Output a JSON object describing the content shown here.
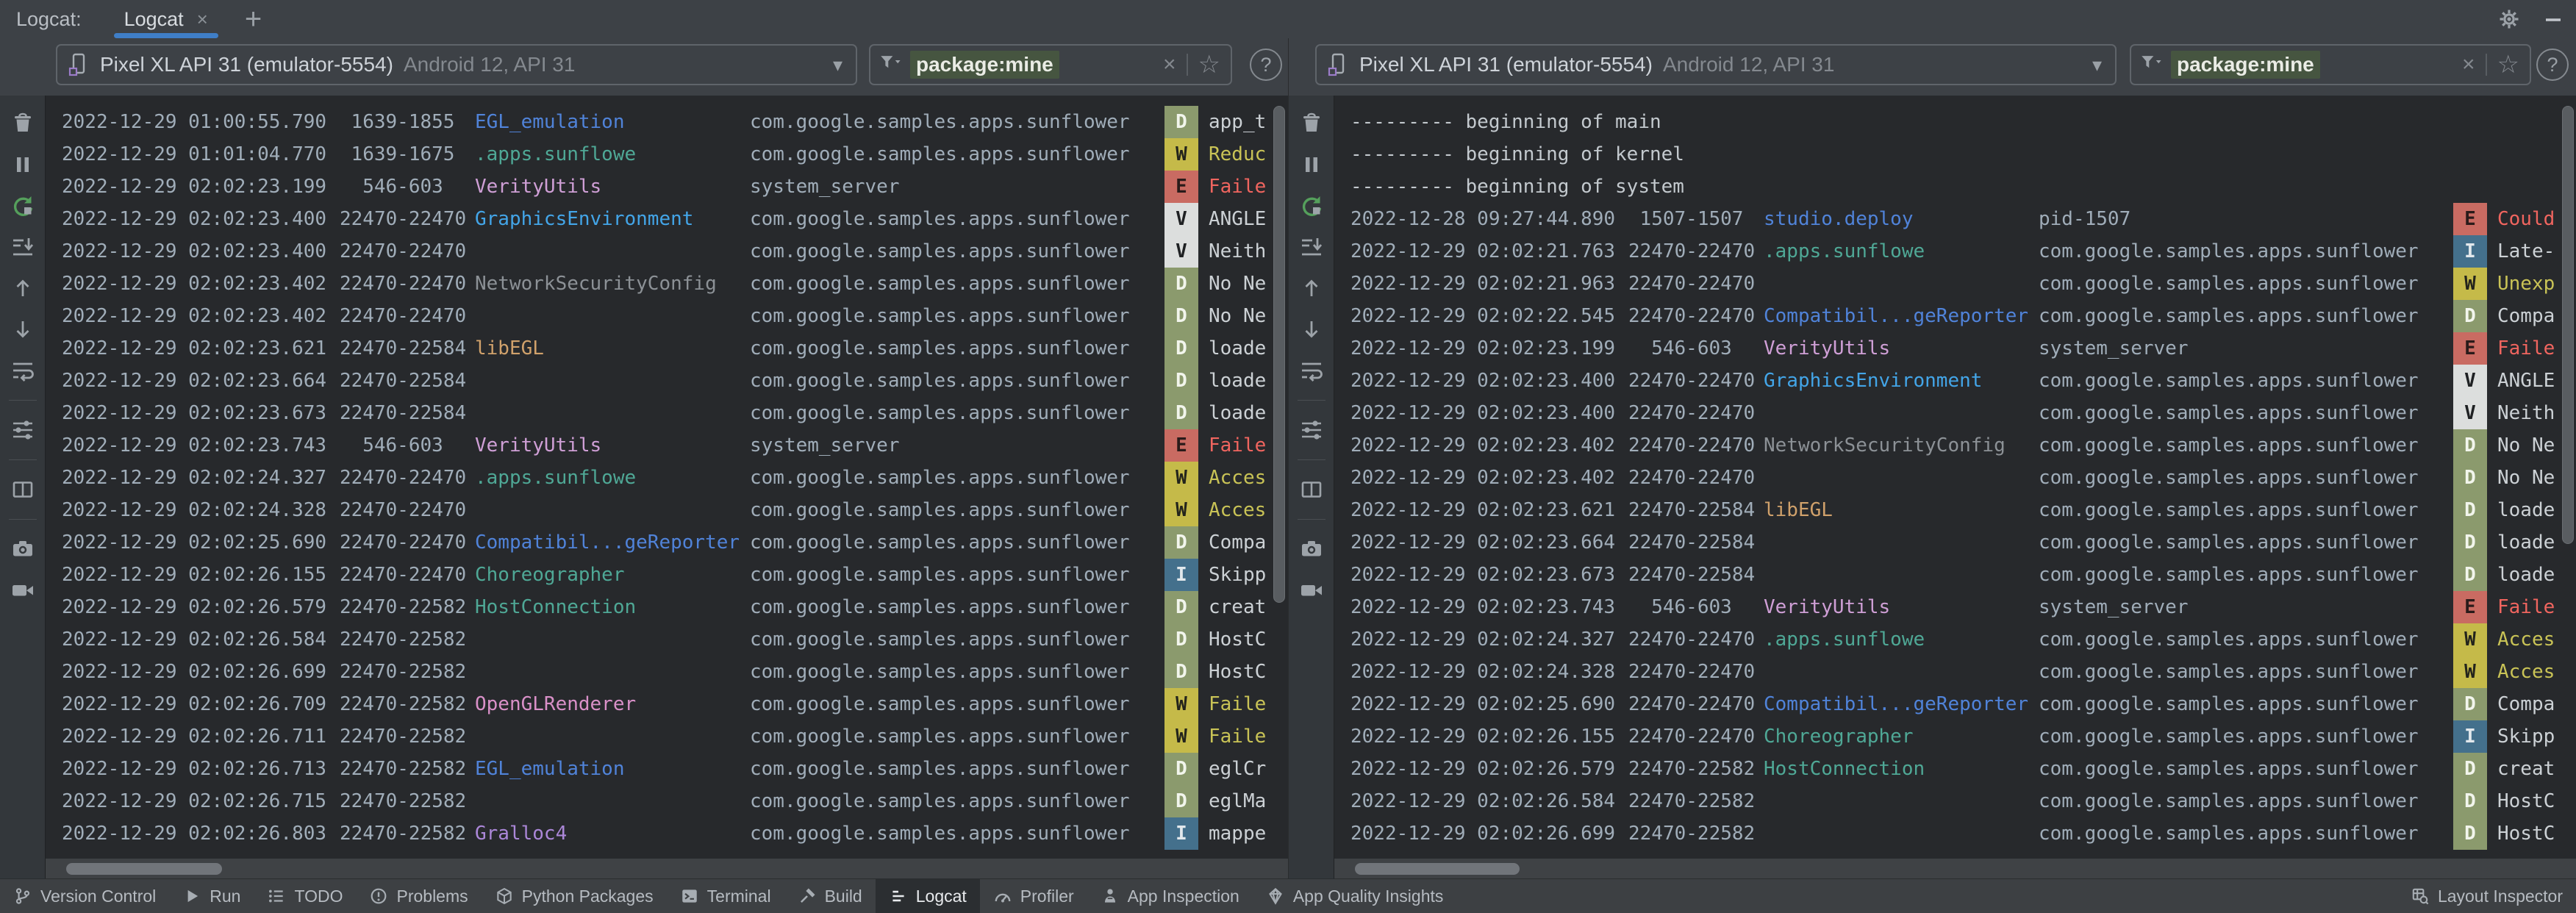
{
  "tabbar": {
    "window_label": "Logcat:",
    "tab_label": "Logcat",
    "close_icon": "×",
    "new_tab_icon": "+"
  },
  "header": {
    "device_icon": "phone-device-icon",
    "device_name": "Pixel XL API 31 (emulator-5554)",
    "device_sub": "Android 12, API 31",
    "dropdown_icon": "▾",
    "filter_icon": "funnel-icon",
    "filter_value": "package:mine",
    "clear_icon": "×",
    "favorite_icon": "☆",
    "help_icon": "?"
  },
  "window_icons": {
    "settings": "gear-icon",
    "hide": "minimize-icon"
  },
  "colors": {
    "accent_tab_underline": "#3f7ec7",
    "filter_chip_bg": "#465540",
    "timestamp": "#a0adb9",
    "msg_default": "#ccd1d5",
    "msg_warn": "#c9c356",
    "msg_error": "#f0655f",
    "banner_text": "#c3c9ce"
  },
  "levels": {
    "V": {
      "bg": "#dcdedd",
      "fg": "#1f2123"
    },
    "D": {
      "bg": "#8b9a6d",
      "fg": "#f2f5ec"
    },
    "I": {
      "bg": "#44708c",
      "fg": "#e2e8ec"
    },
    "W": {
      "bg": "#c5ba49",
      "fg": "#23241c"
    },
    "E": {
      "bg": "#c96b62",
      "fg": "#2a1b1a"
    }
  },
  "tag_colors": {
    "EGL_emulation": "#5083d9",
    ".apps.sunflowe": "#4fa896",
    "VerityUtils": "#cf9fd6",
    "GraphicsEnvironment": "#43a5e8",
    "NetworkSecurityConfig": "#8c9196",
    "libEGL": "#d0a16b",
    "Compatibil...geReporter": "#5083d9",
    "Choreographer": "#4fa896",
    "HostConnection": "#4fa896",
    "OpenGLRenderer": "#d990c8",
    "Gralloc4": "#ab87d8",
    "studio.deploy": "#5083d9"
  },
  "toolbar": {
    "items": [
      "clear-logcat",
      "pause-logcat",
      "restart-logcat",
      "scroll-to-end",
      "previous-occurrence",
      "next-occurrence",
      "soft-wrap",
      "divider",
      "logcat-settings",
      "divider",
      "split-panels",
      "divider",
      "screenshot",
      "screen-record"
    ]
  },
  "panes": [
    {
      "rows": [
        {
          "ts": "2022-12-29 01:00:55.790",
          "pid": "1639-1855",
          "tag": "EGL_emulation",
          "pkg": "com.google.samples.apps.sunflower",
          "level": "D",
          "msg": "app_t"
        },
        {
          "ts": "2022-12-29 01:01:04.770",
          "pid": "1639-1675",
          "tag": ".apps.sunflowe",
          "pkg": "com.google.samples.apps.sunflower",
          "level": "W",
          "msg": "Reduc"
        },
        {
          "ts": "2022-12-29 02:02:23.199",
          "pid": "546-603",
          "tag": "VerityUtils",
          "pkg": "system_server",
          "level": "E",
          "msg": "Faile"
        },
        {
          "ts": "2022-12-29 02:02:23.400",
          "pid": "22470-22470",
          "tag": "GraphicsEnvironment",
          "pkg": "com.google.samples.apps.sunflower",
          "level": "V",
          "msg": "ANGLE"
        },
        {
          "ts": "2022-12-29 02:02:23.400",
          "pid": "22470-22470",
          "tag": "",
          "pkg": "com.google.samples.apps.sunflower",
          "level": "V",
          "msg": "Neith"
        },
        {
          "ts": "2022-12-29 02:02:23.402",
          "pid": "22470-22470",
          "tag": "NetworkSecurityConfig",
          "pkg": "com.google.samples.apps.sunflower",
          "level": "D",
          "msg": "No Ne"
        },
        {
          "ts": "2022-12-29 02:02:23.402",
          "pid": "22470-22470",
          "tag": "",
          "pkg": "com.google.samples.apps.sunflower",
          "level": "D",
          "msg": "No Ne"
        },
        {
          "ts": "2022-12-29 02:02:23.621",
          "pid": "22470-22584",
          "tag": "libEGL",
          "pkg": "com.google.samples.apps.sunflower",
          "level": "D",
          "msg": "loade"
        },
        {
          "ts": "2022-12-29 02:02:23.664",
          "pid": "22470-22584",
          "tag": "",
          "pkg": "com.google.samples.apps.sunflower",
          "level": "D",
          "msg": "loade"
        },
        {
          "ts": "2022-12-29 02:02:23.673",
          "pid": "22470-22584",
          "tag": "",
          "pkg": "com.google.samples.apps.sunflower",
          "level": "D",
          "msg": "loade"
        },
        {
          "ts": "2022-12-29 02:02:23.743",
          "pid": "546-603",
          "tag": "VerityUtils",
          "pkg": "system_server",
          "level": "E",
          "msg": "Faile"
        },
        {
          "ts": "2022-12-29 02:02:24.327",
          "pid": "22470-22470",
          "tag": ".apps.sunflowe",
          "pkg": "com.google.samples.apps.sunflower",
          "level": "W",
          "msg": "Acces"
        },
        {
          "ts": "2022-12-29 02:02:24.328",
          "pid": "22470-22470",
          "tag": "",
          "pkg": "com.google.samples.apps.sunflower",
          "level": "W",
          "msg": "Acces"
        },
        {
          "ts": "2022-12-29 02:02:25.690",
          "pid": "22470-22470",
          "tag": "Compatibil...geReporter",
          "pkg": "com.google.samples.apps.sunflower",
          "level": "D",
          "msg": "Compa"
        },
        {
          "ts": "2022-12-29 02:02:26.155",
          "pid": "22470-22470",
          "tag": "Choreographer",
          "pkg": "com.google.samples.apps.sunflower",
          "level": "I",
          "msg": "Skipp"
        },
        {
          "ts": "2022-12-29 02:02:26.579",
          "pid": "22470-22582",
          "tag": "HostConnection",
          "pkg": "com.google.samples.apps.sunflower",
          "level": "D",
          "msg": "creat"
        },
        {
          "ts": "2022-12-29 02:02:26.584",
          "pid": "22470-22582",
          "tag": "",
          "pkg": "com.google.samples.apps.sunflower",
          "level": "D",
          "msg": "HostC"
        },
        {
          "ts": "2022-12-29 02:02:26.699",
          "pid": "22470-22582",
          "tag": "",
          "pkg": "com.google.samples.apps.sunflower",
          "level": "D",
          "msg": "HostC"
        },
        {
          "ts": "2022-12-29 02:02:26.709",
          "pid": "22470-22582",
          "tag": "OpenGLRenderer",
          "pkg": "com.google.samples.apps.sunflower",
          "level": "W",
          "msg": "Faile"
        },
        {
          "ts": "2022-12-29 02:02:26.711",
          "pid": "22470-22582",
          "tag": "",
          "pkg": "com.google.samples.apps.sunflower",
          "level": "W",
          "msg": "Faile"
        },
        {
          "ts": "2022-12-29 02:02:26.713",
          "pid": "22470-22582",
          "tag": "EGL_emulation",
          "pkg": "com.google.samples.apps.sunflower",
          "level": "D",
          "msg": "eglCr"
        },
        {
          "ts": "2022-12-29 02:02:26.715",
          "pid": "22470-22582",
          "tag": "",
          "pkg": "com.google.samples.apps.sunflower",
          "level": "D",
          "msg": "eglMa"
        },
        {
          "ts": "2022-12-29 02:02:26.803",
          "pid": "22470-22582",
          "tag": "Gralloc4",
          "pkg": "com.google.samples.apps.sunflower",
          "level": "I",
          "msg": "mappe"
        }
      ]
    },
    {
      "rows": [
        {
          "banner": "--------- beginning of main"
        },
        {
          "banner": "--------- beginning of kernel"
        },
        {
          "banner": "--------- beginning of system"
        },
        {
          "ts": "2022-12-28 09:27:44.890",
          "pid": "1507-1507",
          "tag": "studio.deploy",
          "pkg": "pid-1507",
          "level": "E",
          "msg": "Could"
        },
        {
          "ts": "2022-12-29 02:02:21.763",
          "pid": "22470-22470",
          "tag": ".apps.sunflowe",
          "pkg": "com.google.samples.apps.sunflower",
          "level": "I",
          "msg": "Late-"
        },
        {
          "ts": "2022-12-29 02:02:21.963",
          "pid": "22470-22470",
          "tag": "",
          "pkg": "com.google.samples.apps.sunflower",
          "level": "W",
          "msg": "Unexp"
        },
        {
          "ts": "2022-12-29 02:02:22.545",
          "pid": "22470-22470",
          "tag": "Compatibil...geReporter",
          "pkg": "com.google.samples.apps.sunflower",
          "level": "D",
          "msg": "Compa"
        },
        {
          "ts": "2022-12-29 02:02:23.199",
          "pid": "546-603",
          "tag": "VerityUtils",
          "pkg": "system_server",
          "level": "E",
          "msg": "Faile"
        },
        {
          "ts": "2022-12-29 02:02:23.400",
          "pid": "22470-22470",
          "tag": "GraphicsEnvironment",
          "pkg": "com.google.samples.apps.sunflower",
          "level": "V",
          "msg": "ANGLE"
        },
        {
          "ts": "2022-12-29 02:02:23.400",
          "pid": "22470-22470",
          "tag": "",
          "pkg": "com.google.samples.apps.sunflower",
          "level": "V",
          "msg": "Neith"
        },
        {
          "ts": "2022-12-29 02:02:23.402",
          "pid": "22470-22470",
          "tag": "NetworkSecurityConfig",
          "pkg": "com.google.samples.apps.sunflower",
          "level": "D",
          "msg": "No Ne"
        },
        {
          "ts": "2022-12-29 02:02:23.402",
          "pid": "22470-22470",
          "tag": "",
          "pkg": "com.google.samples.apps.sunflower",
          "level": "D",
          "msg": "No Ne"
        },
        {
          "ts": "2022-12-29 02:02:23.621",
          "pid": "22470-22584",
          "tag": "libEGL",
          "pkg": "com.google.samples.apps.sunflower",
          "level": "D",
          "msg": "loade"
        },
        {
          "ts": "2022-12-29 02:02:23.664",
          "pid": "22470-22584",
          "tag": "",
          "pkg": "com.google.samples.apps.sunflower",
          "level": "D",
          "msg": "loade"
        },
        {
          "ts": "2022-12-29 02:02:23.673",
          "pid": "22470-22584",
          "tag": "",
          "pkg": "com.google.samples.apps.sunflower",
          "level": "D",
          "msg": "loade"
        },
        {
          "ts": "2022-12-29 02:02:23.743",
          "pid": "546-603",
          "tag": "VerityUtils",
          "pkg": "system_server",
          "level": "E",
          "msg": "Faile"
        },
        {
          "ts": "2022-12-29 02:02:24.327",
          "pid": "22470-22470",
          "tag": ".apps.sunflowe",
          "pkg": "com.google.samples.apps.sunflower",
          "level": "W",
          "msg": "Acces"
        },
        {
          "ts": "2022-12-29 02:02:24.328",
          "pid": "22470-22470",
          "tag": "",
          "pkg": "com.google.samples.apps.sunflower",
          "level": "W",
          "msg": "Acces"
        },
        {
          "ts": "2022-12-29 02:02:25.690",
          "pid": "22470-22470",
          "tag": "Compatibil...geReporter",
          "pkg": "com.google.samples.apps.sunflower",
          "level": "D",
          "msg": "Compa"
        },
        {
          "ts": "2022-12-29 02:02:26.155",
          "pid": "22470-22470",
          "tag": "Choreographer",
          "pkg": "com.google.samples.apps.sunflower",
          "level": "I",
          "msg": "Skipp"
        },
        {
          "ts": "2022-12-29 02:02:26.579",
          "pid": "22470-22582",
          "tag": "HostConnection",
          "pkg": "com.google.samples.apps.sunflower",
          "level": "D",
          "msg": "creat"
        },
        {
          "ts": "2022-12-29 02:02:26.584",
          "pid": "22470-22582",
          "tag": "",
          "pkg": "com.google.samples.apps.sunflower",
          "level": "D",
          "msg": "HostC"
        },
        {
          "ts": "2022-12-29 02:02:26.699",
          "pid": "22470-22582",
          "tag": "",
          "pkg": "com.google.samples.apps.sunflower",
          "level": "D",
          "msg": "HostC"
        }
      ]
    }
  ],
  "statusbar": {
    "left": [
      {
        "icon": "version-control",
        "label": "Version Control",
        "active": false
      },
      {
        "icon": "run",
        "label": "Run",
        "active": false
      },
      {
        "icon": "todo",
        "label": "TODO",
        "active": false
      },
      {
        "icon": "problems",
        "label": "Problems",
        "active": false
      },
      {
        "icon": "python-packages",
        "label": "Python Packages",
        "active": false
      },
      {
        "icon": "terminal",
        "label": "Terminal",
        "active": false
      },
      {
        "icon": "build",
        "label": "Build",
        "active": false
      },
      {
        "icon": "logcat",
        "label": "Logcat",
        "active": true
      },
      {
        "icon": "profiler",
        "label": "Profiler",
        "active": false
      },
      {
        "icon": "app-inspection",
        "label": "App Inspection",
        "active": false
      },
      {
        "icon": "app-quality-insights",
        "label": "App Quality Insights",
        "active": false
      }
    ],
    "right": [
      {
        "icon": "layout-inspector",
        "label": "Layout Inspector",
        "active": false
      }
    ]
  }
}
